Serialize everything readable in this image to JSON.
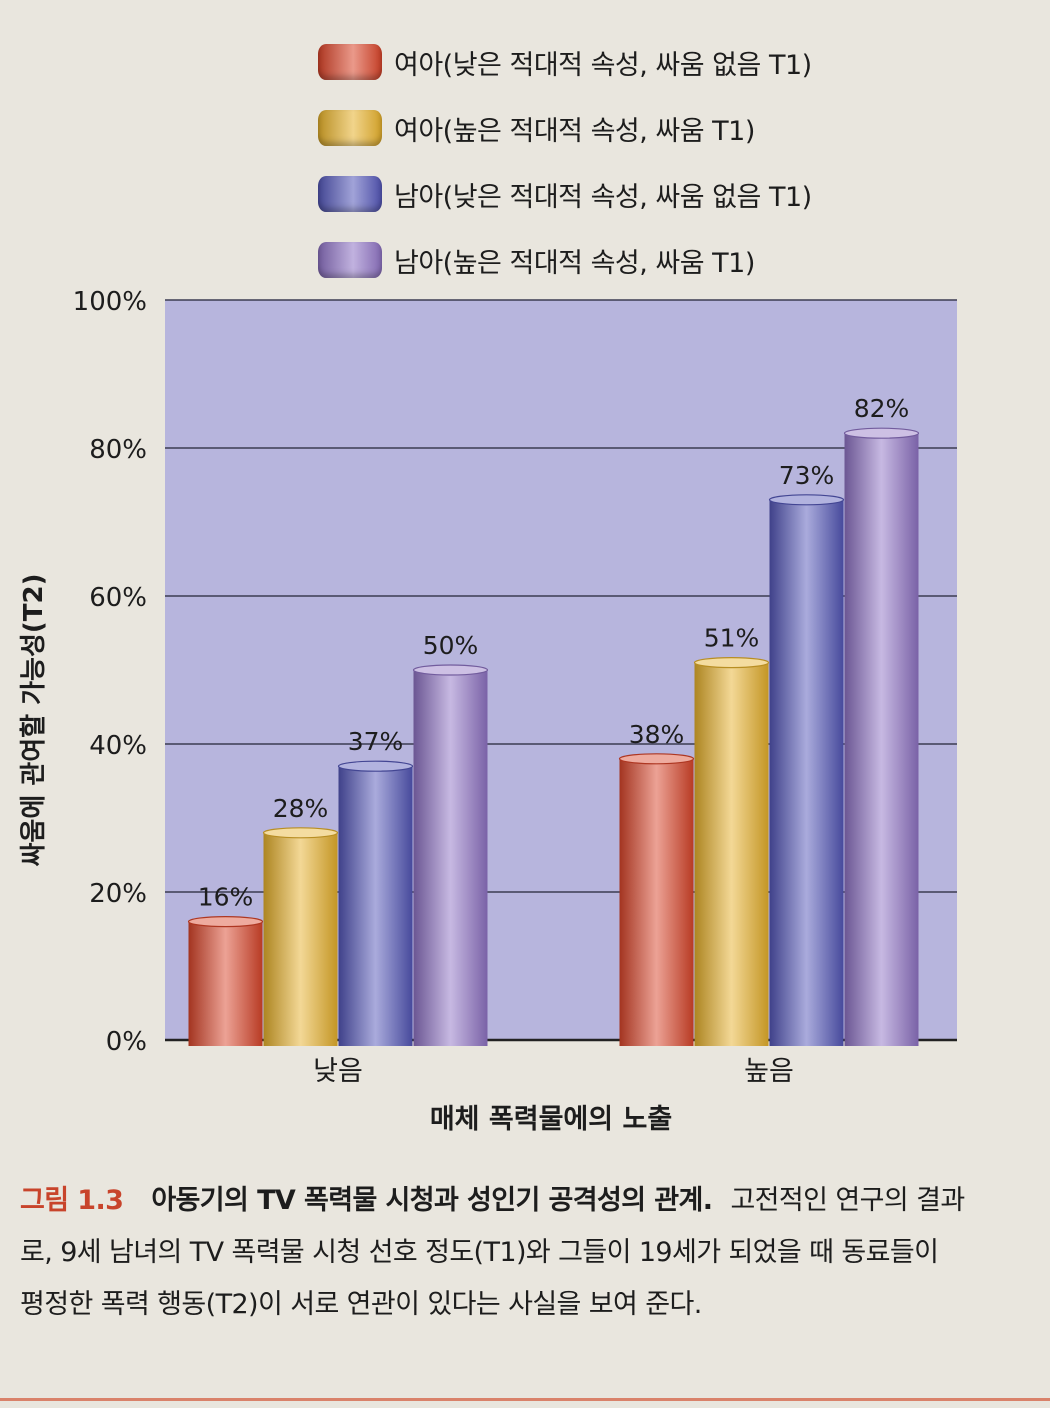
{
  "chart_data": {
    "type": "bar",
    "categories": [
      "낮음",
      "높음"
    ],
    "series": [
      {
        "name": "여아(낮은 적대적 속성, 싸움 없음 T1)",
        "values": [
          16,
          38
        ],
        "labels": [
          "16%",
          "38%"
        ],
        "color": "#d9452a"
      },
      {
        "name": "여아(높은 적대적 속성, 싸움 T1)",
        "values": [
          28,
          51
        ],
        "labels": [
          "28%",
          "51%"
        ],
        "color": "#e6b12c"
      },
      {
        "name": "남아(낮은 적대적 속성, 싸움 없음 T1)",
        "values": [
          37,
          73
        ],
        "labels": [
          "37%",
          "73%"
        ],
        "color": "#5457b8"
      },
      {
        "name": "남아(높은 적대적 속성, 싸움 T1)",
        "values": [
          50,
          82
        ],
        "labels": [
          "50%",
          "82%"
        ],
        "color": "#8f73c4"
      }
    ],
    "yticks": [
      "0%",
      "20%",
      "40%",
      "60%",
      "80%",
      "100%"
    ],
    "ylim": [
      0,
      100
    ],
    "xlabel": "매체 폭력물에의 노출",
    "ylabel": "싸움에 관여할 가능성(T2)",
    "grid": true,
    "plot_background": "#b7b5dd",
    "legend_position": "top"
  },
  "caption": {
    "figure_number": "그림 1.3",
    "title": "아동기의 TV 폭력물 시청과 성인기 공격성의 관계.",
    "text": "고전적인 연구의 결과로, 9세 남녀의 TV 폭력물 시청 선호 정도(T1)와 그들이 19세가 되었을 때 동료들이 평정한 폭력 행동(T2)이 서로 연관이 있다는 사실을 보여 준다."
  }
}
